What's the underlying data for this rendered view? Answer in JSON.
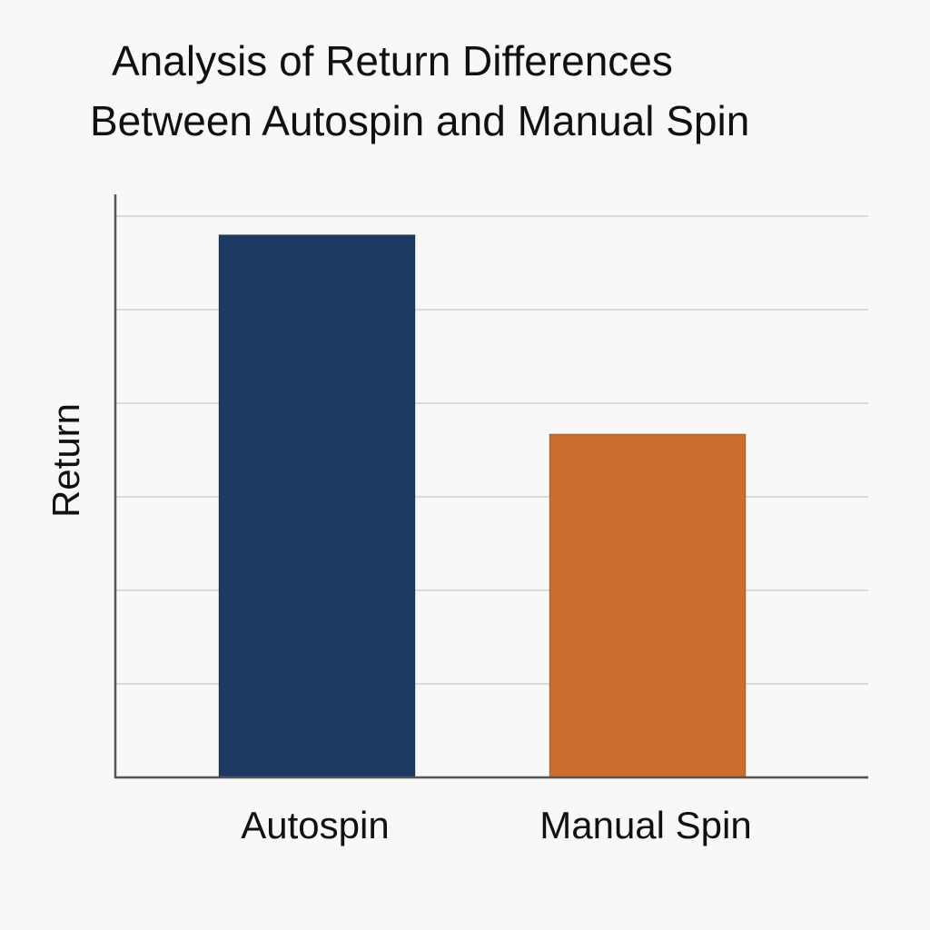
{
  "chart_data": {
    "type": "bar",
    "title": "Analysis of Return Differences Between Autospin and Manual Spin",
    "title_lines": [
      "Analysis of Return Differences",
      "Between Autospin and Manual Spin"
    ],
    "xlabel": "",
    "ylabel": "Return",
    "categories": [
      "Autospin",
      "Manual Spin"
    ],
    "values": [
      5.8,
      3.67
    ],
    "ylim": [
      0,
      6
    ],
    "gridlines": [
      1,
      2,
      3,
      4,
      5,
      6
    ],
    "grid": true,
    "legend": "none",
    "colors": [
      "#1b3961",
      "#c96e2c"
    ]
  }
}
